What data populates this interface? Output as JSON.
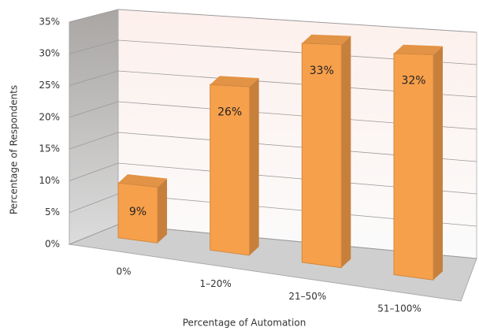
{
  "chart_data": {
    "type": "bar",
    "x_label": "Percentage of Automation",
    "y_label": "Percentage of Respondents",
    "categories": [
      "0%",
      "1–20%",
      "21–50%",
      "51–100%"
    ],
    "values": [
      9,
      26,
      33,
      32
    ],
    "value_labels": [
      "9%",
      "26%",
      "33%",
      "32%"
    ],
    "color": "#f7a04b",
    "ylim": [
      0,
      35
    ],
    "yticks": [
      {
        "value": 0,
        "label": "0%"
      },
      {
        "value": 5,
        "label": "5%"
      },
      {
        "value": 10,
        "label": "10%"
      },
      {
        "value": 15,
        "label": "15%"
      },
      {
        "value": 20,
        "label": "20%"
      },
      {
        "value": 25,
        "label": "25%"
      },
      {
        "value": 30,
        "label": "30%"
      },
      {
        "value": 35,
        "label": "35%"
      }
    ],
    "grid": true
  }
}
